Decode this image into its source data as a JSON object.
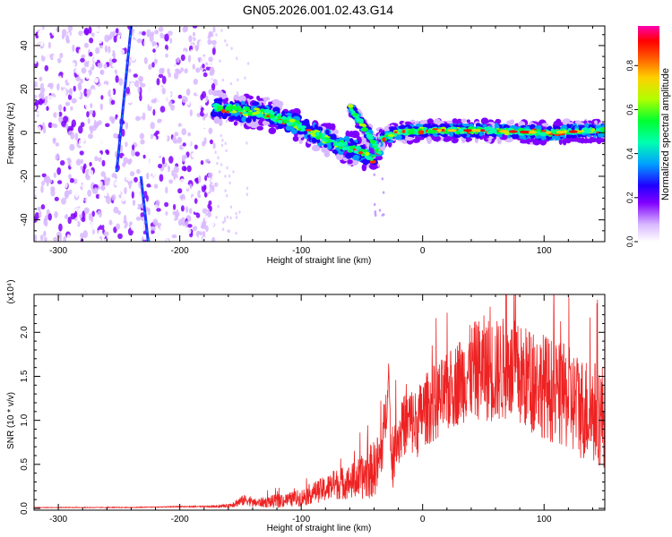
{
  "figure_title": "GN05.2026.001.02.43.G14",
  "chart_data": [
    {
      "type": "heatmap",
      "title": "GN05.2026.001.02.43.G14",
      "xlabel": "Height of straight line (km)",
      "ylabel": "Frequency (Hz)",
      "xlim": [
        -320,
        150
      ],
      "ylim": [
        -50,
        49
      ],
      "xticks": [
        -300,
        -200,
        -100,
        0,
        100
      ],
      "yticks": [
        -40,
        -20,
        0,
        20,
        40
      ],
      "colorbar": {
        "label": "Normalized spectral amplitude",
        "range": [
          0,
          0.98
        ],
        "ticks": [
          "0.0",
          "0.2",
          "0.4",
          "0.6",
          "0.8"
        ],
        "tick_values": [
          0,
          0.2,
          0.4,
          0.6,
          0.8
        ],
        "colormap": [
          "#ffffff",
          "#d8b8ff",
          "#8000ff",
          "#2000ff",
          "#00c0ff",
          "#00ff60",
          "#c0ff00",
          "#ff8000",
          "#ff0000",
          "#ff00c0"
        ]
      },
      "noise_region": {
        "x": [
          -320,
          -170
        ],
        "y": [
          -50,
          49
        ],
        "level": 0.25
      },
      "signal_ridge": [
        {
          "x": -172,
          "y": 12
        },
        {
          "x": -150,
          "y": 10
        },
        {
          "x": -130,
          "y": 9
        },
        {
          "x": -110,
          "y": 5
        },
        {
          "x": -95,
          "y": 2
        },
        {
          "x": -80,
          "y": -3
        },
        {
          "x": -65,
          "y": -6
        },
        {
          "x": -50,
          "y": -9
        },
        {
          "x": -40,
          "y": -12
        },
        {
          "x": -35,
          "y": -3
        },
        {
          "x": -20,
          "y": 0
        },
        {
          "x": 0,
          "y": 1
        },
        {
          "x": 50,
          "y": 1
        },
        {
          "x": 100,
          "y": 0
        },
        {
          "x": 150,
          "y": 1
        }
      ],
      "secondary_ridge": [
        {
          "x": -60,
          "y": 12
        },
        {
          "x": -45,
          "y": 0
        },
        {
          "x": -35,
          "y": -10
        }
      ],
      "streaks": [
        {
          "x1": -240,
          "y1": 49,
          "x2": -252,
          "y2": -18
        },
        {
          "x1": -232,
          "y1": -20,
          "x2": -226,
          "y2": -50
        }
      ]
    },
    {
      "type": "line",
      "xlabel": "Height of straight line (km)",
      "ylabel": "SNR (10 * v/v)",
      "scale_label": "(x10⁴)",
      "xlim": [
        -320,
        150
      ],
      "ylim": [
        -0.02,
        2.43
      ],
      "xticks": [
        -300,
        -200,
        -100,
        0,
        100
      ],
      "yticks": [
        "0.0",
        "0.5",
        "1.0",
        "1.5",
        "2.0"
      ],
      "ytick_values": [
        0,
        0.5,
        1.0,
        1.5,
        2.0
      ],
      "color": "#ee2222",
      "series": [
        {
          "x": [
            -320,
            -280,
            -240,
            -200,
            -170,
            -160,
            -150,
            -145,
            -140,
            -130,
            -120,
            -110,
            -100,
            -90,
            -80,
            -70,
            -60,
            -50,
            -45,
            -40,
            -35,
            -30,
            -28,
            -26,
            -24,
            -22,
            -20,
            -15,
            -10,
            -5,
            0,
            10,
            20,
            30,
            40,
            50,
            60,
            70,
            80,
            90,
            100,
            110,
            120,
            130,
            140,
            150
          ],
          "values": [
            0.01,
            0.01,
            0.01,
            0.02,
            0.02,
            0.03,
            0.08,
            0.1,
            0.06,
            0.07,
            0.08,
            0.1,
            0.12,
            0.18,
            0.22,
            0.28,
            0.3,
            0.35,
            0.4,
            0.45,
            0.55,
            1.1,
            1.6,
            0.6,
            0.5,
            0.85,
            0.8,
            0.95,
            1.0,
            0.95,
            1.1,
            1.2,
            1.3,
            1.45,
            1.55,
            1.6,
            1.55,
            1.6,
            1.5,
            1.45,
            1.4,
            1.3,
            1.25,
            1.15,
            1.1,
            1.05
          ],
          "noise": [
            0.003,
            0.003,
            0.004,
            0.005,
            0.01,
            0.02,
            0.06,
            0.06,
            0.05,
            0.06,
            0.08,
            0.08,
            0.1,
            0.12,
            0.15,
            0.18,
            0.2,
            0.25,
            0.3,
            0.32,
            0.35,
            0.3,
            0.1,
            0.25,
            0.3,
            0.3,
            0.35,
            0.35,
            0.4,
            0.4,
            0.4,
            0.45,
            0.45,
            0.5,
            0.55,
            0.6,
            0.6,
            0.6,
            0.6,
            0.6,
            0.6,
            0.6,
            0.6,
            0.6,
            0.6,
            0.6
          ]
        }
      ]
    }
  ]
}
